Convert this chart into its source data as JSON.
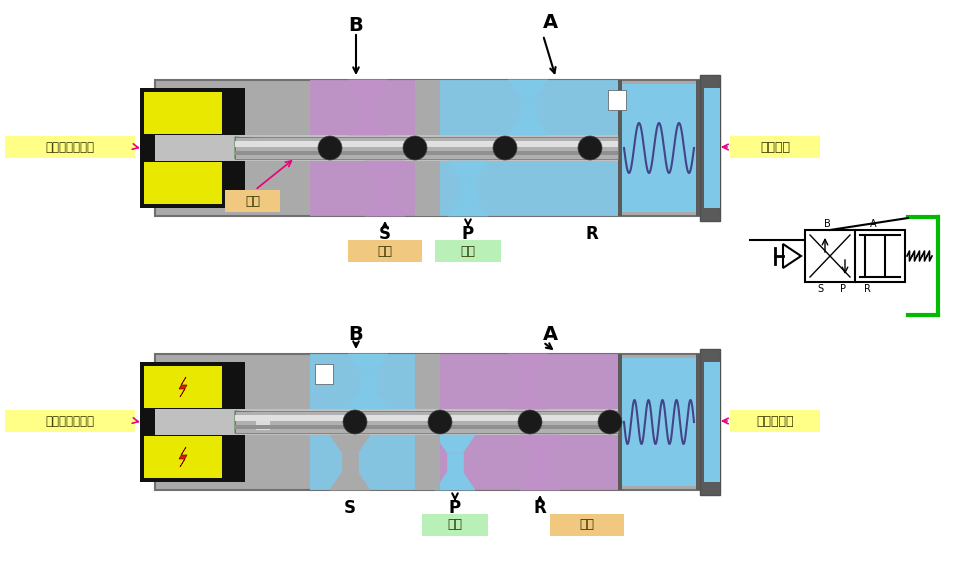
{
  "bg_color": "#ffffff",
  "gray_dark": "#5a5a5a",
  "gray_mid": "#909090",
  "gray_light": "#c0c0c0",
  "gray_body": "#aaaaaa",
  "black_coil": "#111111",
  "green_plunger": "#2d7a2d",
  "blue_port": "#80c8e8",
  "purple_port": "#c090c8",
  "yellow_label": "#ffff88",
  "orange_label": "#f0c880",
  "green_label": "#b8f0b8",
  "pink_arrow": "#e8007a",
  "green_symbol": "#00bb00",
  "rod_grad1": "#d0d0d0",
  "rod_grad2": "#888888",
  "label_dianlu_off": "电磁阀线圈断电",
  "label_dianlu_on": "电磁阀线圈通电",
  "label_huosai": "活塞",
  "label_paiq_top": "排气",
  "label_jinq_top": "进气",
  "label_paiq_bot": "排气",
  "label_jinq_bot": "进气",
  "label_spring_exp": "弹簧扩张",
  "label_spring_cmp": "弹簧被压缩"
}
